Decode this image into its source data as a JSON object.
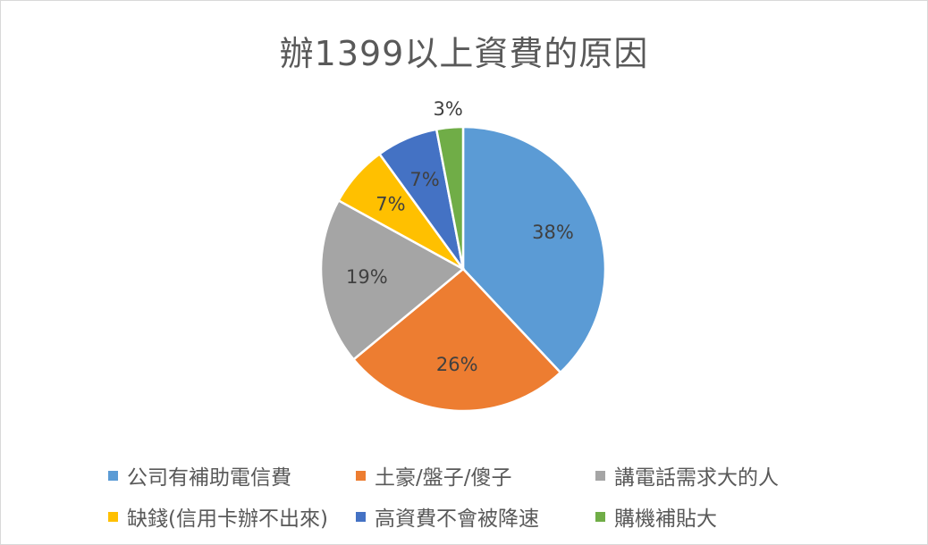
{
  "chart_data": {
    "type": "pie",
    "title": "辦1399以上資費的原因",
    "categories": [
      "公司有補助電信費",
      "土豪/盤子/傻子",
      "講電話需求大的人",
      "缺錢(信用卡辦不出來)",
      "高資費不會被降速",
      "購機補貼大"
    ],
    "values": [
      38,
      26,
      19,
      7,
      7,
      3
    ],
    "data_labels": [
      "38%",
      "26%",
      "19%",
      "7%",
      "7%",
      "3%"
    ],
    "colors": [
      "#5B9BD5",
      "#ED7D31",
      "#A5A5A5",
      "#FFC000",
      "#4472C4",
      "#70AD47"
    ],
    "legend_position": "bottom"
  }
}
